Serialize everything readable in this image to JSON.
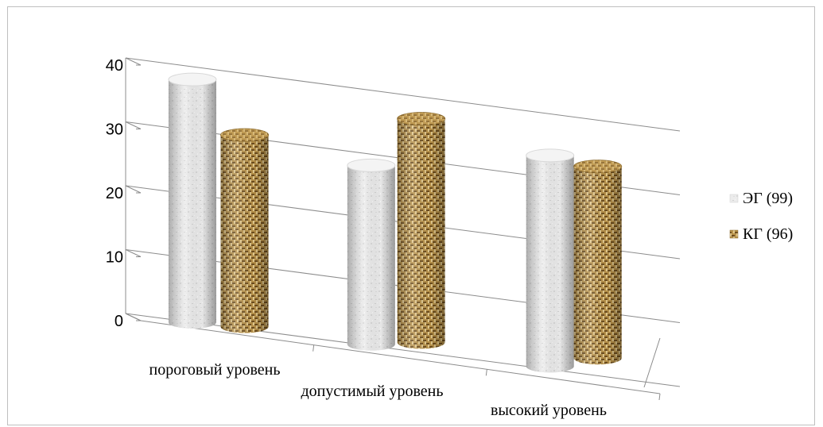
{
  "chart_data": {
    "type": "bar",
    "style": "3d-cylinder",
    "categories": [
      "пороговый уровень",
      "допустимый уровень",
      "высокий уровень"
    ],
    "series": [
      {
        "name": "ЭГ (99)",
        "values": [
          38,
          28,
          33
        ],
        "color": "#e6e6e6"
      },
      {
        "name": "КГ (96)",
        "values": [
          30,
          35,
          30
        ],
        "color": "#b8924a"
      }
    ],
    "y_ticks": [
      "0",
      "10",
      "20",
      "30",
      "40"
    ],
    "ylim": [
      0,
      40
    ],
    "grid": true,
    "legend": "right"
  }
}
